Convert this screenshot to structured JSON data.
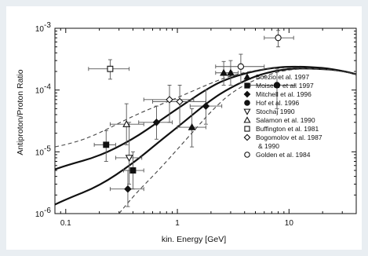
{
  "chart_data": {
    "type": "scatter",
    "title": "",
    "xlabel": "kin. Energy  [GeV]",
    "ylabel": "Antiproton/Proton Ratio",
    "xscale": "log",
    "yscale": "log",
    "xlim": [
      0.08,
      40
    ],
    "ylim": [
      1e-06,
      0.001
    ],
    "x_ticks": [
      {
        "value": 0.1,
        "label": "0.1"
      },
      {
        "value": 1,
        "label": "1"
      },
      {
        "value": 10,
        "label": "10"
      }
    ],
    "y_ticks": [
      {
        "value": 1e-06,
        "label": "10",
        "exp": "-6"
      },
      {
        "value": 1e-05,
        "label": "10",
        "exp": "-5"
      },
      {
        "value": 0.0001,
        "label": "10",
        "exp": "-4"
      },
      {
        "value": 0.001,
        "label": "10",
        "exp": "-3"
      }
    ],
    "legend_position": "right",
    "series": [
      {
        "name": "Boezio et al. 1997",
        "marker": "triangle-filled",
        "points": [
          {
            "x": 1.35,
            "y": 2.5e-05,
            "xerr": [
              1.0,
              1.8
            ],
            "yerr": [
              1.2e-05,
              5e-05
            ]
          },
          {
            "x": 2.6,
            "y": 0.00019,
            "xerr": [
              2.2,
              3.1
            ],
            "yerr": [
              0.00012,
              0.00029
            ]
          },
          {
            "x": 3.0,
            "y": 0.00019,
            "xerr": [
              2.6,
              3.5
            ],
            "yerr": [
              0.00012,
              0.0003
            ]
          }
        ]
      },
      {
        "name": "Moiseev et al. 1997",
        "marker": "square-filled",
        "points": [
          {
            "x": 0.23,
            "y": 1.3e-05,
            "xerr": [
              0.18,
              0.28
            ],
            "yerr": [
              7e-06,
              2.2e-05
            ]
          },
          {
            "x": 0.4,
            "y": 5e-06,
            "xerr": [
              0.33,
              0.5
            ],
            "yerr": [
              2.5e-06,
              1e-05
            ]
          }
        ]
      },
      {
        "name": "Mitchell et al. 1996",
        "marker": "diamond-filled",
        "points": [
          {
            "x": 0.36,
            "y": 2.5e-06,
            "xerr": [
              0.25,
              0.5
            ],
            "yerr": [
              1.3e-06,
              5e-06
            ]
          },
          {
            "x": 0.65,
            "y": 3e-05,
            "xerr": [
              0.45,
              0.9
            ],
            "yerr": [
              1.6e-05,
              5.5e-05
            ]
          },
          {
            "x": 1.8,
            "y": 5.5e-05,
            "xerr": [
              1.3,
              2.5
            ],
            "yerr": [
              2.8e-05,
              0.0001
            ]
          }
        ]
      },
      {
        "name": "Hof et al. 1996",
        "marker": "circle-filled",
        "points": [
          {
            "x": 7.8,
            "y": 0.00012,
            "xerr": [
              4.5,
              11.5
            ],
            "yerr": [
              5e-05,
              0.00022
            ]
          }
        ]
      },
      {
        "name": "Stochaj 1990",
        "marker": "triangle-down-open",
        "points": [
          {
            "x": 0.37,
            "y": 8e-06,
            "xerr": [
              0.28,
              0.48
            ],
            "yerr": [
              3e-06,
              3e-05
            ]
          }
        ]
      },
      {
        "name": "Salamon et al. 1990",
        "marker": "triangle-open",
        "points": [
          {
            "x": 0.35,
            "y": 2.8e-05,
            "xerr": [
              0.25,
              0.5
            ],
            "yerr": [
              1.3e-05,
              6e-05
            ]
          }
        ]
      },
      {
        "name": "Buffington et al. 1981",
        "marker": "square-open",
        "points": [
          {
            "x": 0.25,
            "y": 0.00022,
            "xerr": [
              0.16,
              0.37
            ],
            "yerr": [
              0.00015,
              0.00031
            ]
          }
        ]
      },
      {
        "name": "Bogomolov et al. 1987\n& 1990",
        "marker": "diamond-open",
        "points": [
          {
            "x": 0.85,
            "y": 7e-05,
            "xerr": [
              0.5,
              1.4
            ],
            "yerr": [
              3e-05,
              0.00012
            ]
          },
          {
            "x": 1.05,
            "y": 6.5e-05,
            "xerr": [
              0.6,
              1.8
            ],
            "yerr": [
              2.5e-05,
              0.00012
            ]
          }
        ]
      },
      {
        "name": "Golden et al. 1984",
        "marker": "circle-open",
        "points": [
          {
            "x": 3.7,
            "y": 0.00024,
            "xerr": [
              2.2,
              6.0
            ],
            "yerr": [
              0.00013,
              0.00038
            ]
          },
          {
            "x": 8.0,
            "y": 0.0007,
            "xerr": [
              6.0,
              11.0
            ],
            "yerr": [
              0.0005,
              0.00092
            ]
          }
        ]
      }
    ],
    "curves": [
      {
        "style": "solid",
        "x": [
          0.08,
          0.1,
          0.2,
          0.4,
          0.7,
          1.0,
          2.0,
          3.0,
          5.0,
          8.0,
          12.0,
          20.0,
          30.0,
          40.0
        ],
        "y": [
          5.2e-06,
          6e-06,
          8.5e-06,
          1.6e-05,
          3.2e-05,
          5e-05,
          0.000115,
          0.00016,
          0.000205,
          0.000235,
          0.00024,
          0.00023,
          0.000205,
          0.00018
        ]
      },
      {
        "style": "solid",
        "x": [
          0.08,
          0.1,
          0.2,
          0.4,
          0.7,
          1.0,
          2.0,
          3.0,
          5.0,
          8.0,
          12.0,
          20.0,
          30.0,
          40.0
        ],
        "y": [
          1.4e-06,
          1.7e-06,
          2.8e-06,
          6.5e-06,
          1.5e-05,
          2.5e-05,
          7e-05,
          0.00011,
          0.00017,
          0.00021,
          0.000225,
          0.00022,
          0.000205,
          0.00018
        ]
      },
      {
        "style": "dashed",
        "x": [
          0.08,
          0.12,
          0.2,
          0.4,
          0.7,
          1.0,
          2.0,
          3.0,
          5.0,
          8.0,
          12.0,
          20.0,
          30.0,
          40.0
        ],
        "y": [
          1.2e-05,
          1.4e-05,
          2e-05,
          3.8e-05,
          5.8e-05,
          7.5e-05,
          0.00013,
          0.00017,
          0.00021,
          0.00023,
          0.00023,
          0.00022,
          0.0002,
          0.00018
        ]
      },
      {
        "style": "dashed",
        "x": [
          0.3,
          0.4,
          0.6,
          0.8,
          1.0,
          1.5,
          2.0,
          3.0,
          5.0,
          8.0,
          12.0,
          20.0,
          30.0,
          40.0
        ],
        "y": [
          1e-06,
          1.9e-06,
          4e-06,
          7e-06,
          1.1e-05,
          2.5e-05,
          4.5e-05,
          9e-05,
          0.00015,
          0.0002,
          0.00022,
          0.00022,
          0.0002,
          0.00018
        ]
      }
    ]
  }
}
